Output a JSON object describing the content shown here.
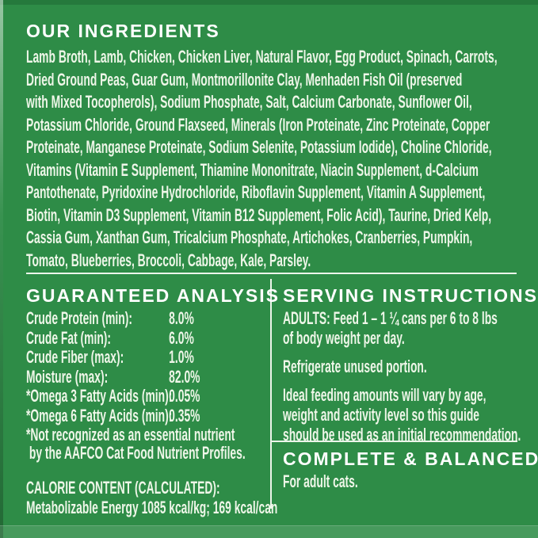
{
  "label": {
    "background_color": "#2e8c47",
    "heading_color": "#ffffff",
    "body_text_color": "#eef6e8",
    "divider_color": "#ecf5ea"
  },
  "ingredients": {
    "heading": "OUR INGREDIENTS",
    "lines": [
      "Lamb Broth, Lamb, Chicken, Chicken Liver, Natural Flavor, Egg Product, Spinach, Carrots,",
      "Dried Ground Peas, Guar Gum, Montmorillonite Clay, Menhaden Fish Oil (preserved",
      "with Mixed Tocopherols), Sodium Phosphate, Salt, Calcium Carbonate, Sunflower Oil,",
      "Potassium Chloride, Ground Flaxseed, Minerals (Iron Proteinate, Zinc Proteinate, Copper",
      "Proteinate, Manganese Proteinate, Sodium Selenite, Potassium Iodide), Choline Chloride,",
      "Vitamins (Vitamin E Supplement, Thiamine Mononitrate, Niacin Supplement, d-Calcium",
      "Pantothenate, Pyridoxine Hydrochloride, Riboflavin Supplement, Vitamin A Supplement,",
      "Biotin, Vitamin D3 Supplement, Vitamin B12 Supplement, Folic Acid), Taurine, Dried Kelp,",
      "Cassia Gum, Xanthan Gum, Tricalcium Phosphate, Artichokes, Cranberries, Pumpkin,",
      "Tomato, Blueberries, Broccoli, Cabbage, Kale, Parsley."
    ]
  },
  "guaranteed_analysis": {
    "heading": "GUARANTEED ANALYSIS",
    "rows": [
      {
        "label": "Crude Protein (min):",
        "value": "8.0%"
      },
      {
        "label": "Crude Fat (min):",
        "value": "6.0%"
      },
      {
        "label": "Crude Fiber (max):",
        "value": "1.0%"
      },
      {
        "label": "Moisture (max):",
        "value": "82.0%"
      },
      {
        "label": "*Omega 3 Fatty Acids (min):",
        "value": "0.05%"
      },
      {
        "label": "*Omega 6 Fatty Acids (min):",
        "value": "0.35%"
      }
    ],
    "footnote_lines": [
      "*Not recognized as an essential nutrient",
      " by the AAFCO Cat Food Nutrient Profiles."
    ],
    "calorie_heading": "CALORIE CONTENT (CALCULATED):",
    "calorie_line": "Metabolizable Energy 1085 kcal/kg; 169 kcal/can"
  },
  "serving_instructions": {
    "heading": "SERVING INSTRUCTIONS",
    "paragraph1": [
      "ADULTS: Feed 1 – 1 ¼ cans per 6 to 8 lbs",
      "of body weight per day."
    ],
    "paragraph2": [
      "Refrigerate unused portion."
    ],
    "paragraph3": [
      "Ideal feeding amounts will vary by age,",
      "weight and activity level so this guide",
      "should be used as an initial recommendation."
    ]
  },
  "complete_balanced": {
    "heading": "COMPLETE & BALANCED",
    "text": "For adult cats."
  }
}
